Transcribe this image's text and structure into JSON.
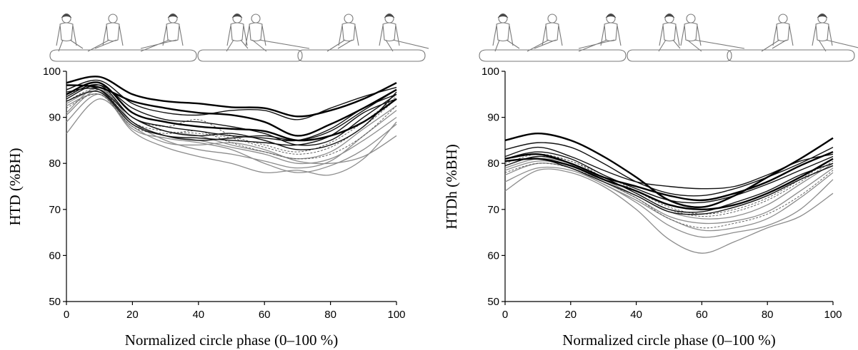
{
  "chart_data": [
    {
      "type": "line",
      "title": "",
      "xlabel": "Normalized circle phase (0–100 %)",
      "ylabel": "HTD (%BH)",
      "xlim": [
        0,
        100
      ],
      "ylim": [
        50,
        100
      ],
      "xticks": [
        "0",
        "20",
        "40",
        "60",
        "80",
        "100"
      ],
      "yticks": [
        "50",
        "60",
        "70",
        "80",
        "90",
        "100"
      ],
      "grid": false,
      "legend": "none",
      "x": [
        0,
        10,
        20,
        30,
        40,
        50,
        60,
        70,
        80,
        90,
        100
      ],
      "series": [
        {
          "style": "black-thick",
          "values": [
            97.5,
            98.8,
            95.0,
            93.5,
            93.0,
            92.2,
            92.0,
            90.2,
            91.5,
            94.0,
            97.5
          ]
        },
        {
          "style": "black-thick",
          "values": [
            97.0,
            96.5,
            93.5,
            92.0,
            91.0,
            90.5,
            89.0,
            86.0,
            88.5,
            92.0,
            96.0
          ]
        },
        {
          "style": "black-thick",
          "values": [
            95.0,
            97.5,
            91.0,
            89.0,
            88.0,
            87.5,
            87.0,
            85.0,
            86.0,
            89.0,
            94.0
          ]
        },
        {
          "style": "black",
          "values": [
            96.0,
            98.0,
            93.0,
            91.0,
            90.5,
            91.5,
            91.5,
            89.5,
            92.0,
            94.5,
            96.5
          ]
        },
        {
          "style": "black",
          "values": [
            94.0,
            97.0,
            92.0,
            89.5,
            89.0,
            88.0,
            86.5,
            84.0,
            85.0,
            90.0,
            95.0
          ]
        },
        {
          "style": "black",
          "values": [
            95.5,
            96.0,
            90.0,
            87.0,
            86.0,
            86.5,
            85.0,
            83.0,
            84.0,
            88.0,
            95.5
          ]
        },
        {
          "style": "black",
          "values": [
            93.5,
            95.5,
            88.5,
            86.0,
            85.5,
            85.0,
            84.5,
            84.0,
            86.0,
            91.0,
            94.0
          ]
        },
        {
          "style": "black",
          "values": [
            97.0,
            96.0,
            89.0,
            86.0,
            85.0,
            85.5,
            86.0,
            85.0,
            87.0,
            91.5,
            96.0
          ]
        },
        {
          "style": "black",
          "values": [
            94.5,
            97.0,
            90.0,
            88.0,
            87.0,
            86.0,
            85.5,
            85.0,
            87.5,
            92.0,
            95.0
          ]
        },
        {
          "style": "gray",
          "values": [
            86.5,
            94.0,
            88.0,
            84.5,
            84.0,
            84.5,
            83.0,
            80.5,
            80.0,
            81.5,
            86.0
          ]
        },
        {
          "style": "gray",
          "values": [
            89.0,
            95.0,
            87.0,
            83.5,
            81.5,
            80.0,
            78.0,
            78.5,
            77.5,
            81.0,
            89.0
          ]
        },
        {
          "style": "gray",
          "values": [
            91.0,
            96.5,
            89.0,
            85.0,
            83.0,
            82.0,
            80.5,
            79.0,
            80.5,
            86.0,
            91.5
          ]
        },
        {
          "style": "gray",
          "values": [
            92.5,
            95.0,
            88.5,
            86.0,
            85.0,
            83.5,
            82.0,
            80.0,
            81.0,
            85.0,
            90.0
          ]
        },
        {
          "style": "gray",
          "values": [
            90.5,
            96.0,
            90.0,
            87.0,
            86.0,
            84.0,
            82.5,
            81.0,
            82.5,
            87.5,
            92.5
          ]
        },
        {
          "style": "gray",
          "values": [
            93.0,
            95.5,
            87.5,
            85.5,
            84.5,
            83.0,
            80.0,
            78.0,
            79.5,
            83.0,
            88.5
          ]
        },
        {
          "style": "dashed",
          "values": [
            93.5,
            96.0,
            89.0,
            87.0,
            86.5,
            85.5,
            83.5,
            82.0,
            83.5,
            88.0,
            94.0
          ]
        },
        {
          "style": "dashed",
          "values": [
            95.0,
            96.5,
            90.0,
            88.0,
            89.5,
            86.0,
            84.0,
            82.5,
            84.5,
            89.0,
            94.5
          ]
        },
        {
          "style": "dashed",
          "values": [
            92.0,
            95.0,
            88.0,
            86.5,
            87.0,
            84.5,
            82.5,
            81.0,
            82.0,
            86.0,
            92.5
          ]
        }
      ]
    },
    {
      "type": "line",
      "title": "",
      "xlabel": "Normalized circle phase (0–100 %)",
      "ylabel": "HTDh (%BH)",
      "xlim": [
        0,
        100
      ],
      "ylim": [
        50,
        100
      ],
      "xticks": [
        "0",
        "20",
        "40",
        "60",
        "80",
        "100"
      ],
      "yticks": [
        "50",
        "60",
        "70",
        "80",
        "90",
        "100"
      ],
      "grid": false,
      "legend": "none",
      "x": [
        0,
        10,
        20,
        30,
        40,
        50,
        60,
        70,
        80,
        90,
        100
      ],
      "series": [
        {
          "style": "black-thick",
          "values": [
            85.0,
            86.5,
            85.0,
            81.5,
            77.0,
            72.0,
            70.5,
            73.0,
            77.0,
            81.0,
            85.5
          ]
        },
        {
          "style": "black-thick",
          "values": [
            81.0,
            82.0,
            80.0,
            77.0,
            75.0,
            73.0,
            72.0,
            73.5,
            76.0,
            79.5,
            82.5
          ]
        },
        {
          "style": "black-thick",
          "values": [
            80.5,
            81.0,
            79.5,
            76.5,
            74.0,
            71.0,
            70.0,
            71.0,
            73.5,
            77.0,
            81.0
          ]
        },
        {
          "style": "black",
          "values": [
            83.0,
            84.5,
            83.5,
            80.0,
            76.0,
            73.5,
            73.0,
            74.5,
            77.0,
            80.0,
            83.5
          ]
        },
        {
          "style": "black",
          "values": [
            81.5,
            83.5,
            81.5,
            78.5,
            76.0,
            75.0,
            74.5,
            75.0,
            77.5,
            80.5,
            82.0
          ]
        },
        {
          "style": "black",
          "values": [
            81.0,
            82.5,
            81.0,
            77.5,
            74.5,
            72.0,
            71.5,
            73.0,
            75.5,
            78.5,
            81.5
          ]
        },
        {
          "style": "black",
          "values": [
            79.5,
            81.5,
            80.0,
            77.0,
            73.5,
            70.0,
            69.5,
            71.5,
            74.0,
            77.5,
            80.0
          ]
        },
        {
          "style": "black",
          "values": [
            80.5,
            81.0,
            79.0,
            76.0,
            73.0,
            69.5,
            69.0,
            70.5,
            73.0,
            76.5,
            79.5
          ]
        },
        {
          "style": "gray",
          "values": [
            74.0,
            78.5,
            78.0,
            75.0,
            70.0,
            63.5,
            60.5,
            63.0,
            66.0,
            68.5,
            73.5
          ]
        },
        {
          "style": "gray",
          "values": [
            76.0,
            79.0,
            78.5,
            75.5,
            71.5,
            66.5,
            64.0,
            65.0,
            66.5,
            70.0,
            76.5
          ]
        },
        {
          "style": "gray",
          "values": [
            77.5,
            80.0,
            79.0,
            75.5,
            72.0,
            68.0,
            65.5,
            66.0,
            68.0,
            72.5,
            78.0
          ]
        },
        {
          "style": "gray",
          "values": [
            78.5,
            80.5,
            79.5,
            76.0,
            72.5,
            68.5,
            67.0,
            67.5,
            69.5,
            74.0,
            79.0
          ]
        },
        {
          "style": "gray",
          "values": [
            79.0,
            81.0,
            80.0,
            76.5,
            73.0,
            69.5,
            68.0,
            68.5,
            71.0,
            75.5,
            80.0
          ]
        },
        {
          "style": "dashed",
          "values": [
            78.0,
            80.0,
            79.0,
            76.0,
            72.5,
            68.0,
            66.0,
            67.0,
            69.0,
            73.0,
            78.5
          ]
        },
        {
          "style": "dashed",
          "values": [
            79.5,
            81.5,
            80.5,
            77.0,
            73.5,
            70.0,
            68.5,
            69.5,
            72.0,
            76.0,
            80.5
          ]
        },
        {
          "style": "dashed",
          "values": [
            80.0,
            82.0,
            80.5,
            77.5,
            74.0,
            70.5,
            69.0,
            70.0,
            72.5,
            76.5,
            81.0
          ]
        }
      ]
    }
  ]
}
